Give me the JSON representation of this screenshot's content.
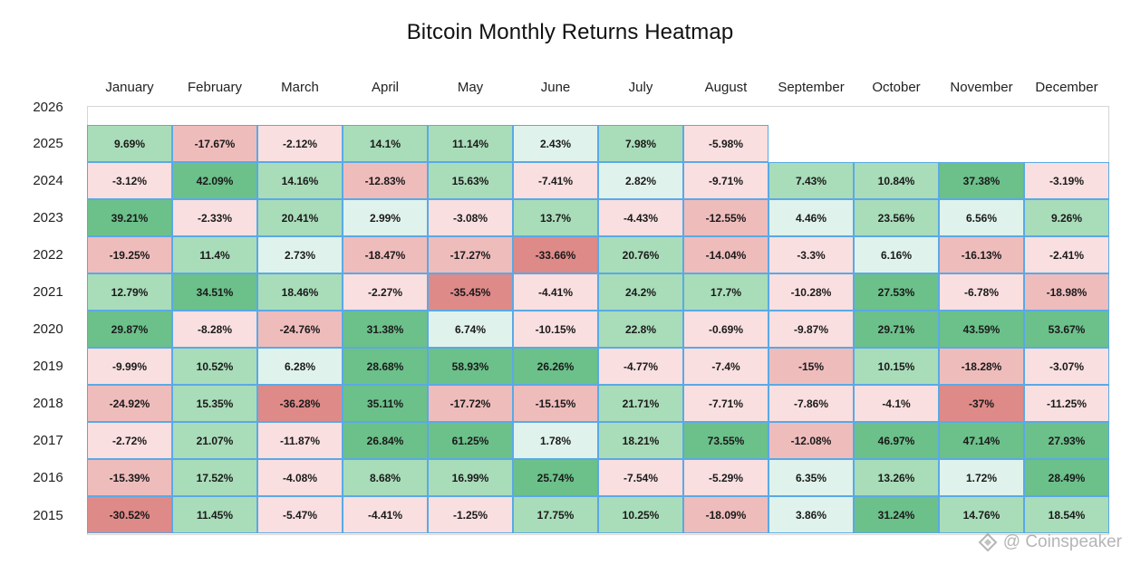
{
  "chart_data": {
    "type": "heatmap",
    "title": "Bitcoin Monthly Returns Heatmap",
    "months": [
      "January",
      "February",
      "March",
      "April",
      "May",
      "June",
      "July",
      "August",
      "September",
      "October",
      "November",
      "December"
    ],
    "years": [
      "2026",
      "2025",
      "2024",
      "2023",
      "2022",
      "2021",
      "2020",
      "2019",
      "2018",
      "2017",
      "2016",
      "2015"
    ],
    "unit": "%",
    "values": {
      "2026": [],
      "2025": [
        9.69,
        -17.67,
        -2.12,
        14.1,
        11.14,
        2.43,
        7.98,
        -5.98
      ],
      "2024": [
        -3.12,
        42.09,
        14.16,
        -12.83,
        15.63,
        -7.41,
        2.82,
        -9.71,
        7.43,
        10.84,
        37.38,
        -3.19
      ],
      "2023": [
        39.21,
        -2.33,
        20.41,
        2.99,
        -3.08,
        13.7,
        -4.43,
        -12.55,
        4.46,
        23.56,
        6.56,
        9.26
      ],
      "2022": [
        -19.25,
        11.4,
        2.73,
        -18.47,
        -17.27,
        -33.66,
        20.76,
        -14.04,
        -3.3,
        6.16,
        -16.13,
        -2.41
      ],
      "2021": [
        12.79,
        34.51,
        18.46,
        -2.27,
        -35.45,
        -4.41,
        24.2,
        17.7,
        -10.28,
        27.53,
        -6.78,
        -18.98
      ],
      "2020": [
        29.87,
        -8.28,
        -24.76,
        31.38,
        6.74,
        -10.15,
        22.8,
        -0.69,
        -9.87,
        29.71,
        43.59,
        53.67
      ],
      "2019": [
        -9.99,
        10.52,
        6.28,
        28.68,
        58.93,
        26.26,
        -4.77,
        -7.4,
        -15,
        10.15,
        -18.28,
        -3.07
      ],
      "2018": [
        -24.92,
        15.35,
        -36.28,
        35.11,
        -17.72,
        -15.15,
        21.71,
        -7.71,
        -7.86,
        -4.1,
        -37,
        -11.25
      ],
      "2017": [
        -2.72,
        21.07,
        -11.87,
        26.84,
        61.25,
        1.78,
        18.21,
        73.55,
        -12.08,
        46.97,
        47.14,
        27.93
      ],
      "2016": [
        -15.39,
        17.52,
        -4.08,
        8.68,
        16.99,
        25.74,
        -7.54,
        -5.29,
        6.35,
        13.26,
        1.72,
        28.49
      ],
      "2015": [
        -30.52,
        11.45,
        -5.47,
        -4.41,
        -1.25,
        17.75,
        10.25,
        -18.09,
        3.86,
        31.24,
        14.76,
        18.54
      ]
    },
    "colors": {
      "positive_low": "#dff2ec",
      "positive_mid": "#a9dcb9",
      "positive_high": "#6cc08a",
      "negative_low": "#f9dfe0",
      "negative_mid": "#efbcbc",
      "negative_high": "#de8a88",
      "cell_border": "#5aa9e6"
    }
  },
  "watermark": "@ Coinspeaker"
}
